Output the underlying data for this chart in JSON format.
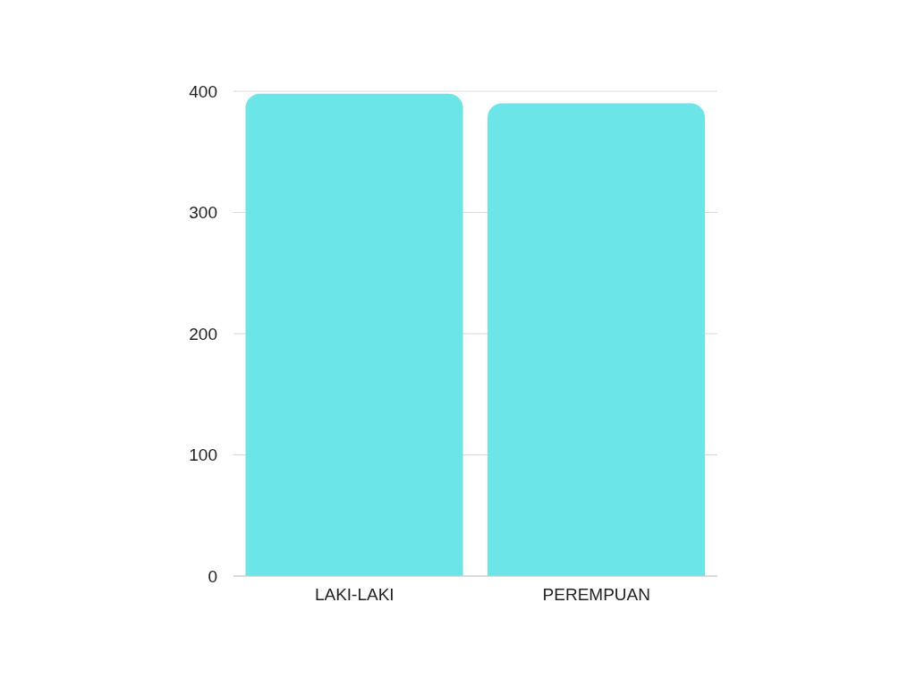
{
  "chart_data": {
    "type": "bar",
    "categories": [
      "LAKI-LAKI",
      "PEREMPUAN"
    ],
    "values": [
      398,
      390
    ],
    "color": "#6ce5e8",
    "ylim": [
      0,
      400
    ],
    "yticks": [
      0,
      100,
      200,
      300,
      400
    ],
    "grid": "y"
  }
}
